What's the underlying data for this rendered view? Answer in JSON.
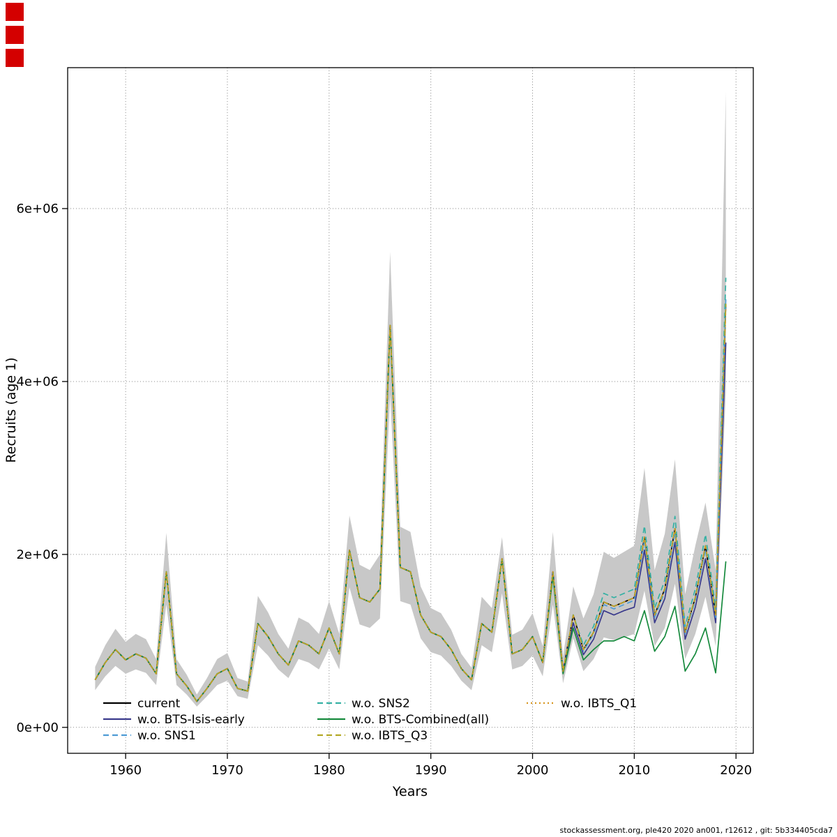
{
  "page": {
    "background": "#ffffff"
  },
  "corner_markers": {
    "color": "#d40000",
    "count": 3
  },
  "chart_data": {
    "type": "line",
    "title": "",
    "xlabel": "Years",
    "ylabel": "Recruits (age 1)",
    "annotation": "stockassessment.org, ple420 2020 an001, r12612 , git: 5b334405cda7",
    "legend_position": "bottom-inside",
    "grid": "dotted",
    "band_color": "#c8c8c8",
    "xlim": [
      1954.3,
      2021.7
    ],
    "ylim": [
      -300000,
      7630000
    ],
    "x_ticks": [
      1960,
      1970,
      1980,
      1990,
      2000,
      2010,
      2020
    ],
    "x_tick_labels": [
      "1960",
      "1970",
      "1980",
      "1990",
      "2000",
      "2010",
      "2020"
    ],
    "y_ticks": [
      0,
      2000000,
      4000000,
      6000000
    ],
    "y_tick_labels": [
      "0e+00",
      "2e+06",
      "4e+06",
      "6e+06"
    ],
    "x": [
      1957,
      1958,
      1959,
      1960,
      1961,
      1962,
      1963,
      1964,
      1965,
      1966,
      1967,
      1968,
      1969,
      1970,
      1971,
      1972,
      1973,
      1974,
      1975,
      1976,
      1977,
      1978,
      1979,
      1980,
      1981,
      1982,
      1983,
      1984,
      1985,
      1986,
      1987,
      1988,
      1989,
      1990,
      1991,
      1992,
      1993,
      1994,
      1995,
      1996,
      1997,
      1998,
      1999,
      2000,
      2001,
      2002,
      2003,
      2004,
      2005,
      2006,
      2007,
      2008,
      2009,
      2010,
      2011,
      2012,
      2013,
      2014,
      2015,
      2016,
      2017,
      2018,
      2019
    ],
    "band": {
      "upper": [
        700000,
        950000,
        1140000,
        990000,
        1080000,
        1020000,
        790000,
        2250000,
        790000,
        610000,
        380000,
        570000,
        790000,
        860000,
        570000,
        530000,
        1520000,
        1330000,
        1080000,
        910000,
        1270000,
        1210000,
        1080000,
        1460000,
        1080000,
        2450000,
        1880000,
        1820000,
        2000000,
        5500000,
        2320000,
        2260000,
        1630000,
        1380000,
        1320000,
        1130000,
        850000,
        690000,
        1510000,
        1380000,
        2200000,
        1070000,
        1130000,
        1320000,
        940000,
        2260000,
        820000,
        1630000,
        1260000,
        1540000,
        2030000,
        1960000,
        2030000,
        2100000,
        3000000,
        1820000,
        2240000,
        3100000,
        1540000,
        2100000,
        2600000,
        1820000,
        7350000
      ],
      "lower": [
        430000,
        590000,
        710000,
        620000,
        670000,
        630000,
        490000,
        1420000,
        490000,
        380000,
        240000,
        360000,
        490000,
        540000,
        360000,
        330000,
        950000,
        830000,
        670000,
        570000,
        790000,
        750000,
        670000,
        910000,
        670000,
        1620000,
        1190000,
        1150000,
        1260000,
        3850000,
        1460000,
        1420000,
        1030000,
        870000,
        830000,
        710000,
        540000,
        430000,
        950000,
        870000,
        1550000,
        670000,
        710000,
        830000,
        590000,
        1420000,
        510000,
        1030000,
        650000,
        790000,
        1040000,
        1010000,
        1040000,
        1080000,
        1580000,
        940000,
        1150000,
        1660000,
        790000,
        1080000,
        1510000,
        940000,
        3900000
      ]
    },
    "series": [
      {
        "label": "current",
        "color": "#000000",
        "dash": "solid",
        "values": [
          550000,
          750000,
          900000,
          780000,
          850000,
          800000,
          620000,
          1800000,
          620000,
          480000,
          300000,
          450000,
          620000,
          680000,
          450000,
          420000,
          1200000,
          1050000,
          850000,
          720000,
          1000000,
          950000,
          850000,
          1150000,
          850000,
          2050000,
          1500000,
          1450000,
          1600000,
          4650000,
          1850000,
          1800000,
          1300000,
          1100000,
          1050000,
          900000,
          680000,
          550000,
          1200000,
          1100000,
          1950000,
          850000,
          900000,
          1050000,
          750000,
          1800000,
          650000,
          1300000,
          900000,
          1100000,
          1450000,
          1400000,
          1450000,
          1500000,
          2200000,
          1300000,
          1600000,
          2300000,
          1100000,
          1500000,
          2100000,
          1300000,
          4900000
        ]
      },
      {
        "label": "w.o. BTS-Isis-early",
        "color": "#3a3a8c",
        "dash": "solid",
        "values": [
          550000,
          750000,
          900000,
          780000,
          850000,
          800000,
          620000,
          1800000,
          620000,
          480000,
          300000,
          450000,
          620000,
          680000,
          450000,
          420000,
          1200000,
          1050000,
          850000,
          720000,
          1000000,
          950000,
          850000,
          1150000,
          850000,
          2050000,
          1500000,
          1450000,
          1600000,
          4650000,
          1850000,
          1800000,
          1300000,
          1100000,
          1050000,
          900000,
          680000,
          550000,
          1200000,
          1100000,
          1950000,
          850000,
          900000,
          1050000,
          750000,
          1800000,
          650000,
          1210000,
          840000,
          1020000,
          1350000,
          1300000,
          1350000,
          1390000,
          2050000,
          1210000,
          1490000,
          2140000,
          1020000,
          1390000,
          1950000,
          1210000,
          4450000
        ]
      },
      {
        "label": "w.o. SNS1",
        "color": "#4d9bd5",
        "dash": "dashed",
        "values": [
          550000,
          750000,
          900000,
          780000,
          850000,
          800000,
          620000,
          1800000,
          620000,
          480000,
          300000,
          450000,
          620000,
          680000,
          450000,
          420000,
          1200000,
          1050000,
          850000,
          720000,
          1000000,
          950000,
          850000,
          1150000,
          850000,
          2050000,
          1500000,
          1450000,
          1600000,
          4650000,
          1850000,
          1800000,
          1300000,
          1100000,
          1050000,
          900000,
          680000,
          550000,
          1200000,
          1100000,
          1950000,
          850000,
          900000,
          1050000,
          750000,
          1800000,
          650000,
          1300000,
          880000,
          1080000,
          1420000,
          1370000,
          1420000,
          1470000,
          2160000,
          1270000,
          1570000,
          2260000,
          1080000,
          1470000,
          2060000,
          1270000,
          4950000
        ]
      },
      {
        "label": "w.o. SNS2",
        "color": "#35b1a4",
        "dash": "dashed",
        "values": [
          550000,
          750000,
          900000,
          780000,
          850000,
          800000,
          620000,
          1800000,
          620000,
          480000,
          300000,
          450000,
          620000,
          680000,
          450000,
          420000,
          1200000,
          1050000,
          850000,
          720000,
          1000000,
          950000,
          850000,
          1150000,
          850000,
          2050000,
          1500000,
          1450000,
          1600000,
          4650000,
          1850000,
          1800000,
          1300000,
          1100000,
          1050000,
          900000,
          680000,
          550000,
          1200000,
          1100000,
          1950000,
          850000,
          900000,
          1050000,
          750000,
          1800000,
          650000,
          1300000,
          950000,
          1170000,
          1550000,
          1500000,
          1550000,
          1600000,
          2330000,
          1380000,
          1700000,
          2440000,
          1170000,
          1600000,
          2230000,
          1380000,
          5200000
        ]
      },
      {
        "label": "w.o. BTS-Combined(all)",
        "color": "#168a3d",
        "dash": "solid",
        "values": [
          550000,
          750000,
          900000,
          780000,
          850000,
          800000,
          620000,
          1800000,
          620000,
          480000,
          300000,
          450000,
          620000,
          680000,
          450000,
          420000,
          1200000,
          1050000,
          850000,
          720000,
          1000000,
          950000,
          850000,
          1150000,
          850000,
          2050000,
          1500000,
          1450000,
          1600000,
          4650000,
          1850000,
          1800000,
          1300000,
          1100000,
          1050000,
          900000,
          680000,
          550000,
          1200000,
          1100000,
          1950000,
          850000,
          900000,
          1050000,
          750000,
          1750000,
          620000,
          1150000,
          780000,
          900000,
          1000000,
          1000000,
          1050000,
          1000000,
          1350000,
          880000,
          1050000,
          1400000,
          650000,
          850000,
          1150000,
          630000,
          1920000
        ]
      },
      {
        "label": "w.o. IBTS_Q3",
        "color": "#b2a825",
        "dash": "dashed",
        "values": [
          550000,
          750000,
          900000,
          780000,
          850000,
          800000,
          620000,
          1800000,
          620000,
          480000,
          300000,
          450000,
          620000,
          680000,
          450000,
          420000,
          1200000,
          1050000,
          850000,
          720000,
          1000000,
          950000,
          850000,
          1150000,
          850000,
          2050000,
          1500000,
          1450000,
          1600000,
          4650000,
          1850000,
          1800000,
          1300000,
          1100000,
          1050000,
          900000,
          680000,
          550000,
          1200000,
          1100000,
          1950000,
          850000,
          900000,
          1050000,
          750000,
          1800000,
          650000,
          1300000,
          900000,
          1100000,
          1450000,
          1400000,
          1450000,
          1500000,
          2200000,
          1300000,
          1600000,
          2300000,
          1100000,
          1500000,
          2100000,
          1300000,
          4900000
        ]
      },
      {
        "label": "w.o. IBTS_Q1",
        "color": "#d79620",
        "dash": "dotted",
        "values": [
          550000,
          750000,
          900000,
          780000,
          850000,
          800000,
          620000,
          1800000,
          620000,
          480000,
          300000,
          450000,
          620000,
          680000,
          450000,
          420000,
          1200000,
          1050000,
          850000,
          720000,
          1000000,
          950000,
          850000,
          1150000,
          850000,
          2050000,
          1500000,
          1450000,
          1600000,
          4650000,
          1850000,
          1800000,
          1300000,
          1100000,
          1050000,
          900000,
          680000,
          550000,
          1200000,
          1100000,
          1950000,
          850000,
          900000,
          1050000,
          750000,
          1800000,
          650000,
          1300000,
          900000,
          1100000,
          1450000,
          1400000,
          1450000,
          1500000,
          2200000,
          1300000,
          1600000,
          2300000,
          1100000,
          1500000,
          2100000,
          1300000,
          4850000
        ]
      }
    ]
  }
}
